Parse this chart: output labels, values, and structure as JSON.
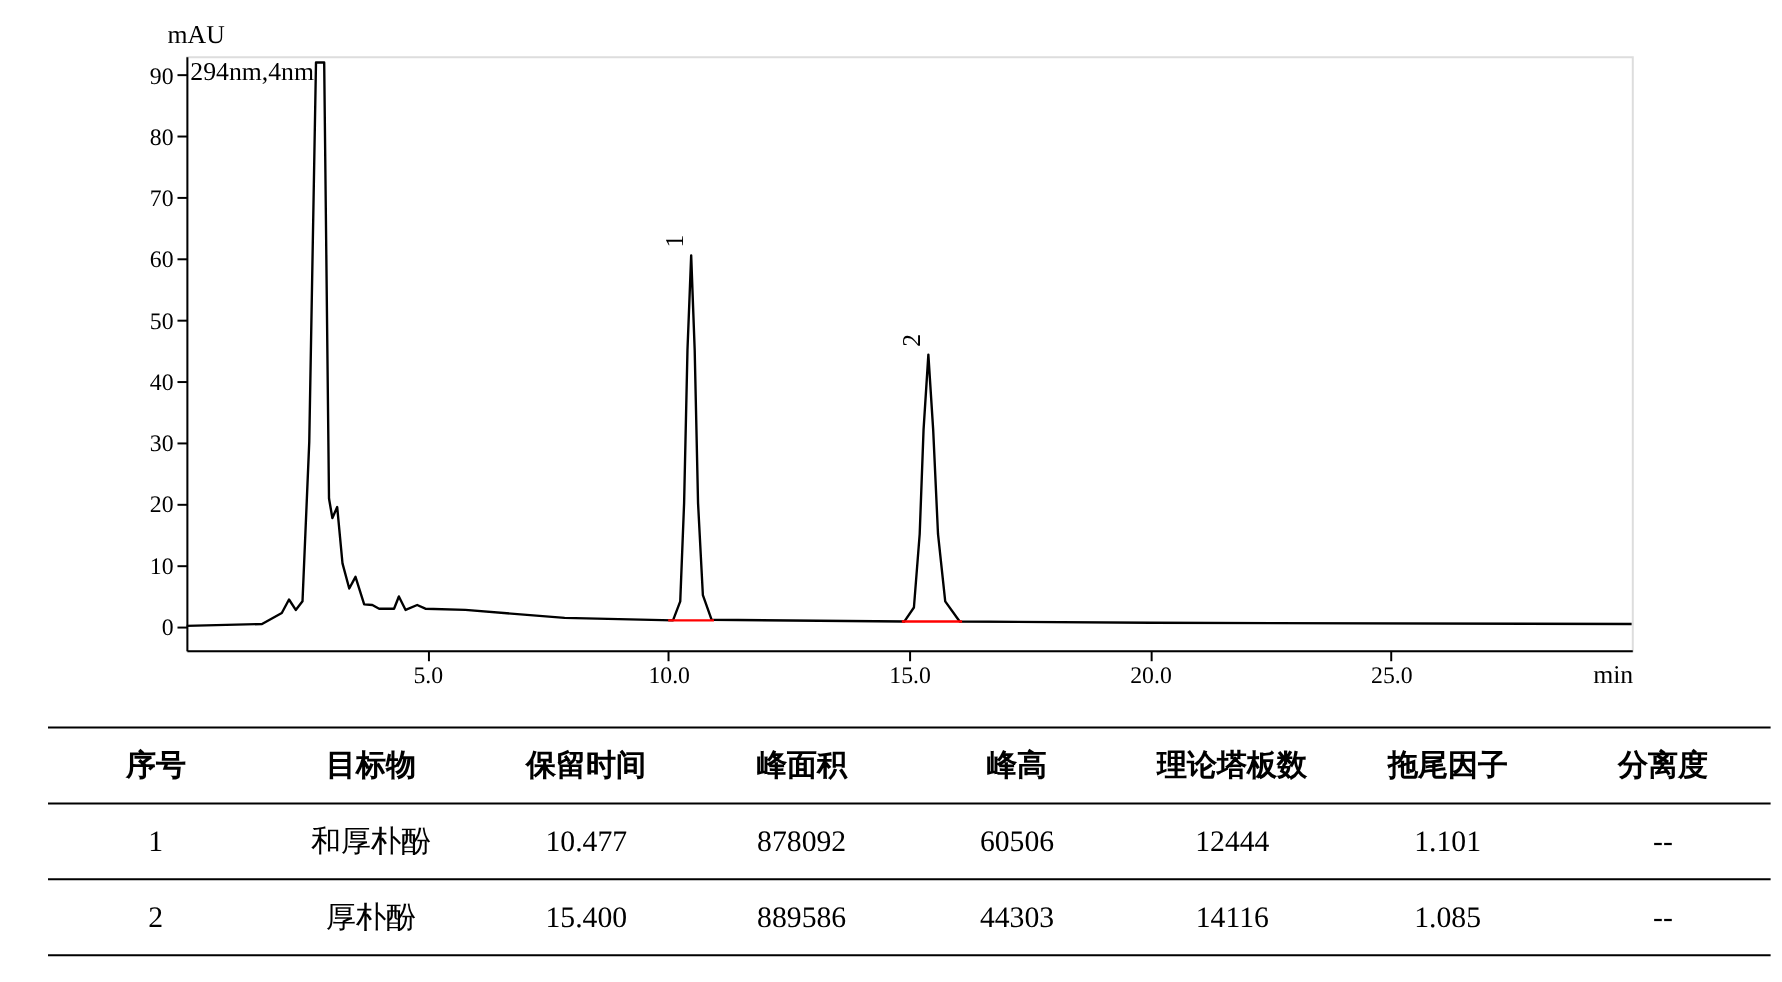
{
  "chart_data": [
    {
      "type": "line",
      "xlabel": "min",
      "ylabel": "mAU",
      "xlim": [
        0,
        30
      ],
      "ylim": [
        -4,
        93
      ],
      "xticks": [
        {
          "value": 5,
          "label": "5.0"
        },
        {
          "value": 10,
          "label": "10.0"
        },
        {
          "value": 15,
          "label": "15.0"
        },
        {
          "value": 20,
          "label": "20.0"
        },
        {
          "value": 25,
          "label": "25.0"
        }
      ],
      "yticks": [
        0,
        10,
        20,
        30,
        40,
        50,
        60,
        70,
        80,
        90
      ],
      "grid": false,
      "legend": false,
      "series": [
        {
          "type": "line",
          "color": "#000000",
          "x": [
            0,
            1.57,
            1.98,
            2.13,
            2.27,
            2.41,
            2.55,
            2.69,
            2.86,
            2.96,
            3.03,
            3.13,
            3.24,
            3.38,
            3.51,
            3.69,
            3.86,
            4.0,
            4.31,
            4.41,
            4.55,
            4.79,
            4.96,
            5.79,
            7.85,
            10.1,
            10.25,
            10.33,
            10.4,
            10.477,
            10.55,
            10.62,
            10.72,
            10.9,
            14.9,
            15.1,
            15.22,
            15.3,
            15.4,
            15.5,
            15.6,
            15.75,
            16.05,
            20,
            30
          ],
          "values": [
            0,
            0.3,
            2.1,
            4.3,
            2.6,
            4,
            30,
            92,
            92,
            20.8,
            17.6,
            19.4,
            10.2,
            6.1,
            8.0,
            3.5,
            3.4,
            2.8,
            2.8,
            4.8,
            2.6,
            3.4,
            2.8,
            2.6,
            1.3,
            0.9,
            4,
            20,
            45,
            60.5,
            45,
            20,
            5,
            1.0,
            0.7,
            3,
            15,
            32,
            44.3,
            32,
            15,
            4,
            0.7,
            0.5,
            0.3
          ]
        },
        {
          "type": "line",
          "color": "#ff0000",
          "x": [
            10.0,
            10.95
          ],
          "values": [
            0.9,
            0.9
          ]
        },
        {
          "type": "line",
          "color": "#ff0000",
          "x": [
            14.85,
            16.1
          ],
          "values": [
            0.7,
            0.7
          ]
        }
      ],
      "annotations": [
        "294nm,4nm",
        {
          "text": "1",
          "x": 10.477,
          "y": 60.5
        },
        {
          "text": "2",
          "x": 15.4,
          "y": 44.3
        }
      ]
    },
    {
      "type": "other",
      "categories": [
        "序号",
        "目标物",
        "保留时间",
        "峰面积",
        "峰高",
        "理论塔板数",
        "拖尾因子",
        "分离度"
      ],
      "annotations": [
        "1",
        "和厚朴酚",
        "10.477",
        "878092",
        "60506",
        "12444",
        "1.101",
        "--",
        "2",
        "厚朴酚",
        "15.400",
        "889586",
        "44303",
        "14116",
        "1.085",
        "--"
      ]
    }
  ]
}
